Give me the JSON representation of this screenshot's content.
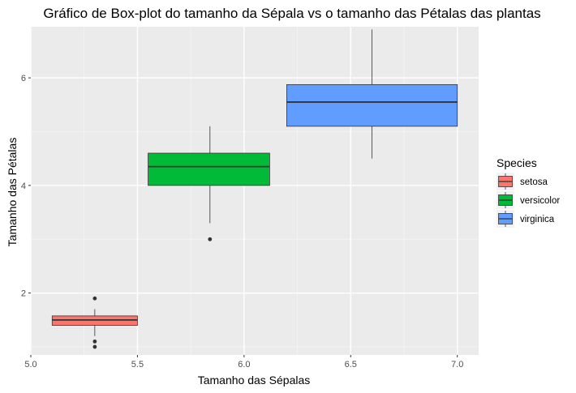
{
  "chart_data": {
    "type": "boxplot",
    "title": "Gráfico de Box-plot do tamanho da Sépala vs o tamanho das Pétalas das plantas",
    "xlabel": "Tamanho das Sépalas",
    "ylabel": "Tamanho das Pétalas",
    "xlim": [
      5.0,
      7.1
    ],
    "ylim": [
      0.85,
      6.95
    ],
    "x_ticks": [
      {
        "value": 5.0,
        "label": "5.0"
      },
      {
        "value": 5.5,
        "label": "5.5"
      },
      {
        "value": 6.0,
        "label": "6.0"
      },
      {
        "value": 6.5,
        "label": "6.5"
      },
      {
        "value": 7.0,
        "label": "7.0"
      }
    ],
    "y_ticks": [
      {
        "value": 2,
        "label": "2"
      },
      {
        "value": 4,
        "label": "4"
      },
      {
        "value": 6,
        "label": "6"
      }
    ],
    "grid": true,
    "legend": {
      "title": "Species",
      "position": "right"
    },
    "series": [
      {
        "name": "setosa",
        "color": "#F8766D",
        "x_center": 5.3,
        "x_min": 5.1,
        "x_max": 5.5,
        "whisker_low": 1.2,
        "q1": 1.4,
        "median": 1.5,
        "q3": 1.575,
        "whisker_high": 1.7,
        "outliers": [
          1.0,
          1.1,
          1.9
        ]
      },
      {
        "name": "versicolor",
        "color": "#00BA38",
        "x_center": 5.84,
        "x_min": 5.55,
        "x_max": 6.12,
        "whisker_low": 3.3,
        "q1": 4.0,
        "median": 4.35,
        "q3": 4.6,
        "whisker_high": 5.1,
        "outliers": [
          3.0
        ]
      },
      {
        "name": "virginica",
        "color": "#619CFF",
        "x_center": 6.6,
        "x_min": 6.2,
        "x_max": 7.0,
        "whisker_low": 4.5,
        "q1": 5.1,
        "median": 5.55,
        "q3": 5.875,
        "whisker_high": 6.9,
        "outliers": []
      }
    ]
  }
}
